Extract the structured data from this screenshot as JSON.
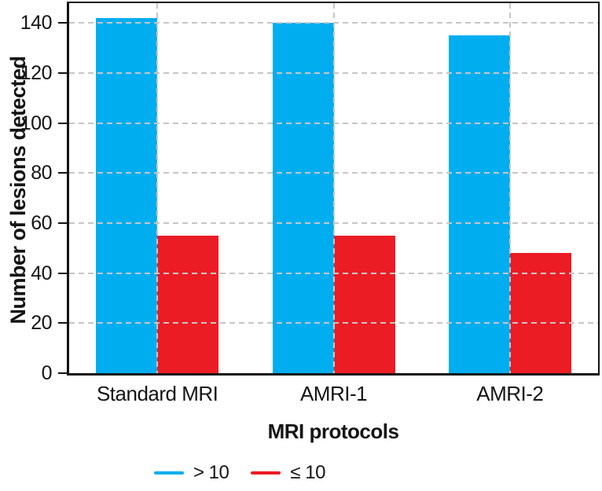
{
  "chart_data": {
    "type": "bar",
    "title": "",
    "categories": [
      "Standard MRI",
      "AMRI-1",
      "AMRI-2"
    ],
    "series": [
      {
        "name": "> 10",
        "color": "#00AEEF",
        "values": [
          142,
          140,
          135
        ]
      },
      {
        "name": "≤ 10",
        "color": "#EC1C24",
        "values": [
          55,
          55,
          48
        ]
      }
    ],
    "xlabel": "MRI protocols",
    "ylabel": "Number of lesions detected",
    "ylim": [
      0,
      148
    ],
    "yticks": [
      0,
      20,
      40,
      60,
      80,
      100,
      120,
      140
    ],
    "grid": "dashed horizontal lines at yticks and dashed vertical lines at category centers, drawn over bars",
    "legend_position": "bottom center"
  },
  "colors": {
    "axis": "#141414",
    "text": "#141414",
    "grid": "#C6C6C6",
    "background": "#FFFFFF"
  }
}
